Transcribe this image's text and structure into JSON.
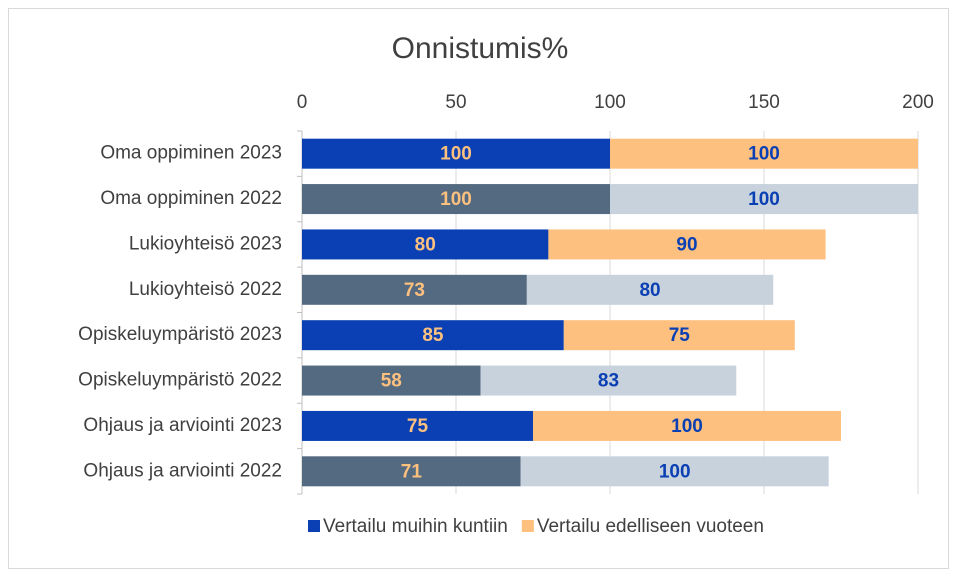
{
  "chart_data": {
    "type": "stacked_barh",
    "title": "Onnistumis%",
    "categories": [
      "Oma oppiminen 2023",
      "Oma oppiminen 2022",
      "Lukioyhteisö 2023",
      "Lukioyhteisö 2022",
      "Opiskeluympäristö 2023",
      "Opiskeluympäristö 2022",
      "Ohjaus ja arviointi 2023",
      "Ohjaus ja arviointi 2022"
    ],
    "series": [
      {
        "name": "Vertailu muihin kuntiin",
        "color": "#0a40b4",
        "label_color": "#fcc07f",
        "colors": [
          "#0a40b4",
          "#546a80",
          "#0a40b4",
          "#546a80",
          "#0a40b4",
          "#546a80",
          "#0a40b4",
          "#546a80"
        ],
        "values": [
          100,
          100,
          80,
          73,
          85,
          58,
          75,
          71
        ]
      },
      {
        "name": "Vertailu edelliseen vuoteen",
        "color": "#fdc07f",
        "label_color": "#0a40b4",
        "colors": [
          "#fdc07f",
          "#c8d2dc",
          "#fdc07f",
          "#c8d2dc",
          "#fdc07f",
          "#c8d2dc",
          "#fdc07f",
          "#c8d2dc"
        ],
        "values": [
          100,
          100,
          90,
          80,
          75,
          83,
          100,
          100
        ]
      }
    ],
    "xlim": [
      0,
      200
    ],
    "xticks": [
      0,
      50,
      100,
      150,
      200
    ],
    "grid": true,
    "legend": "bottom"
  }
}
